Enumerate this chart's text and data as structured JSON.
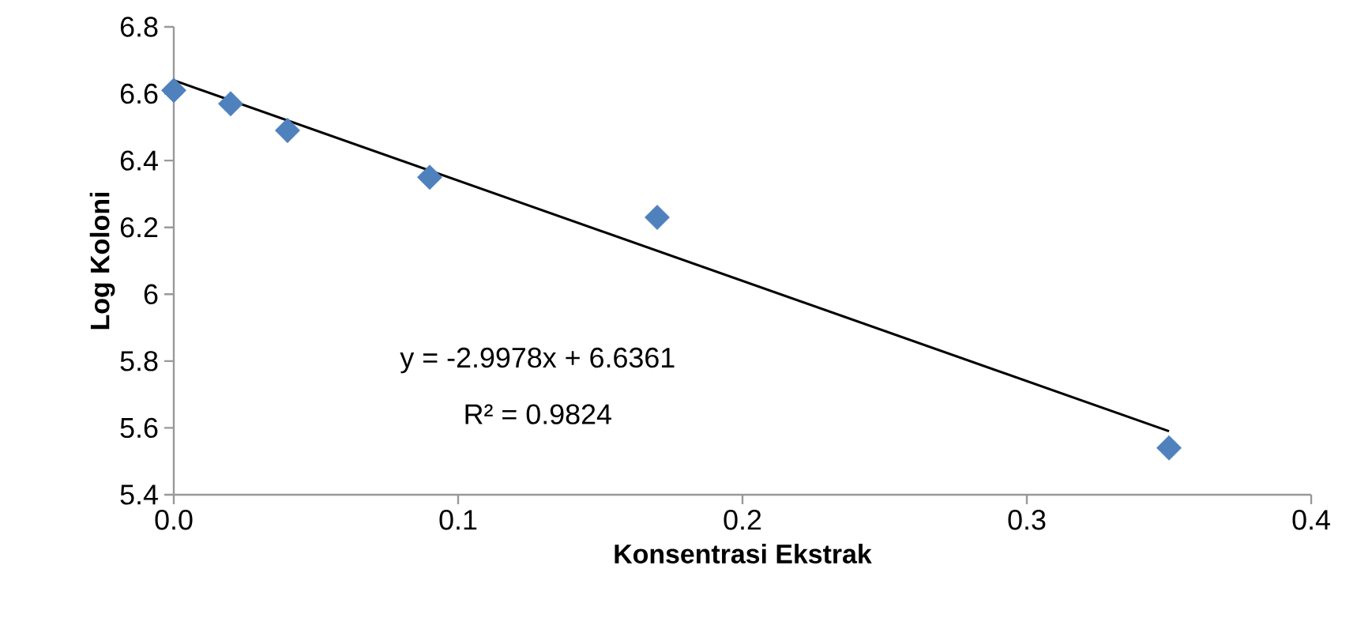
{
  "chart_data": {
    "type": "scatter",
    "xlabel": "Konsentrasi Ekstrak",
    "ylabel": "Log Koloni",
    "xlim": [
      0,
      0.4
    ],
    "xticks": [
      {
        "value": 0,
        "label": "0.0"
      },
      {
        "value": 0.1,
        "label": "0.1"
      },
      {
        "value": 0.2,
        "label": "0.2"
      },
      {
        "value": 0.3,
        "label": "0.3"
      },
      {
        "value": 0.4,
        "label": "0.4"
      }
    ],
    "ylim": [
      5.4,
      6.8
    ],
    "yticks": [
      5.4,
      5.6,
      5.8,
      6,
      6.2,
      6.4,
      6.6,
      6.8
    ],
    "marker": "diamond",
    "grid": false,
    "series": [
      {
        "color": "#4f81bd",
        "x": [
          0,
          0.02,
          0.04,
          0.09,
          0.17,
          0.35
        ],
        "values": [
          6.61,
          6.57,
          6.49,
          6.35,
          6.23,
          5.54
        ]
      },
      {
        "type": "line",
        "color": "#000000",
        "marker": "none",
        "line_style": "solid",
        "x": [
          0,
          0.35
        ],
        "values": [
          6.64,
          5.59
        ]
      }
    ],
    "annotations": [
      "y = -2.9978x + 6.6361",
      "R² = 0.9824"
    ]
  }
}
